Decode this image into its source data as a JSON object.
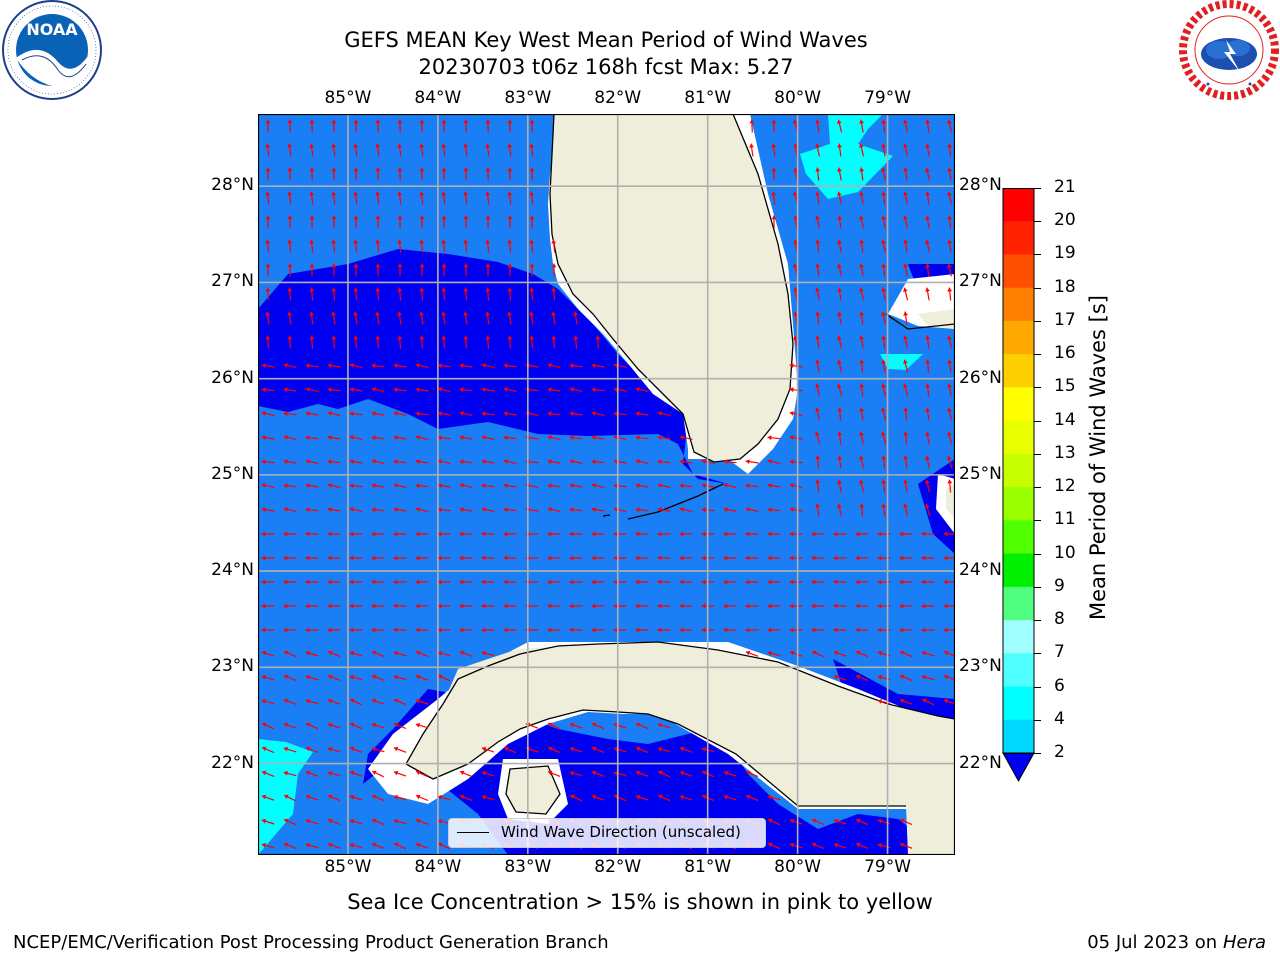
{
  "title": {
    "line1": "GEFS MEAN Key West Mean Period of Wind Waves",
    "line2": "20230703 t06z 168h fcst   Max: 5.27"
  },
  "logos": {
    "left": {
      "text": "NOAA",
      "ring_text": "NATIONAL OCEANIC AND ATMOSPHERIC ADMINISTRATION · U.S. DEPARTMENT OF COMMERCE",
      "icon": "noaa-logo"
    },
    "right": {
      "ring_text": "NATIONAL WEATHER SERVICE",
      "icon": "nws-logo"
    }
  },
  "map": {
    "lon_ticks": [
      "85°W",
      "84°W",
      "83°W",
      "82°W",
      "81°W",
      "80°W",
      "79°W"
    ],
    "lat_ticks": [
      "28°N",
      "27°N",
      "26°N",
      "25°N",
      "24°N",
      "23°N",
      "22°N"
    ],
    "lon_range": [
      -86.0,
      -78.25
    ],
    "lat_range": [
      21.05,
      28.75
    ],
    "colors": {
      "ocean_main": "#1a7ef5",
      "ocean_low": "#0000f0",
      "cyan": "#00ffff",
      "land": "#efeedb",
      "coast": "#000000",
      "arrow": "#ff0000",
      "grid": "#b0b0b0"
    },
    "arrow_field": "Wind Wave Direction (unscaled)"
  },
  "legend": {
    "label": "Wind Wave Direction (unscaled)"
  },
  "colorbar": {
    "label": "Mean Period of Wind Waves [s]",
    "ticks": [
      "21",
      "20",
      "19",
      "18",
      "17",
      "16",
      "15",
      "14",
      "13",
      "12",
      "11",
      "10",
      "9",
      "8",
      "7",
      "6",
      "4",
      "2"
    ],
    "colors": [
      "#ff0000",
      "#ff2200",
      "#ff5000",
      "#ff8000",
      "#ffa800",
      "#ffd000",
      "#ffff00",
      "#e8ff00",
      "#c8ff00",
      "#9cff00",
      "#50ff00",
      "#00f000",
      "#50ff80",
      "#a0ffff",
      "#50ffff",
      "#00ffff",
      "#00d8ff",
      "#0070ff",
      "#0000f0"
    ]
  },
  "ice_note": "Sea Ice Concentration > 15% is shown in pink to yellow",
  "footer": {
    "left": "NCEP/EMC/Verification Post Processing Product Generation Branch",
    "right_date": "05 Jul 2023 on ",
    "right_machine": "Hera"
  }
}
